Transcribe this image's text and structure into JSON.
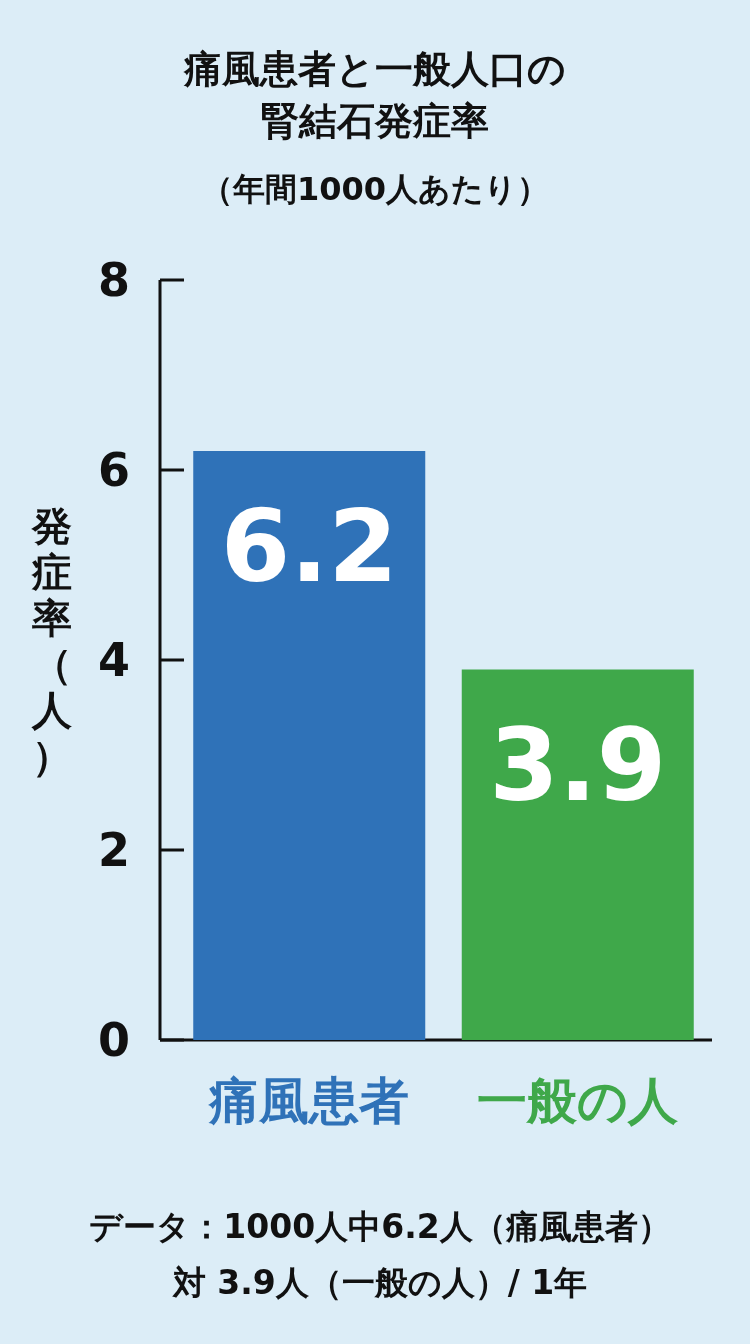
{
  "chart_data": {
    "type": "bar",
    "title": "痛風患者と一般人口の腎結石発症率",
    "subtitle": "（年間1000人あたり）",
    "ylabel": "発症率（人）",
    "categories": [
      "痛風患者",
      "一般の人"
    ],
    "values": [
      6.2,
      3.9
    ],
    "colors": [
      "#2f72b8",
      "#3fa84a"
    ],
    "ylim": [
      0,
      8
    ],
    "yticks": [
      0,
      2,
      4,
      6,
      8
    ],
    "data_labels": true,
    "annotations": [
      "データ：1000人中6.2人（痛風患者）対 3.9人（一般の人）/ 1年"
    ]
  }
}
